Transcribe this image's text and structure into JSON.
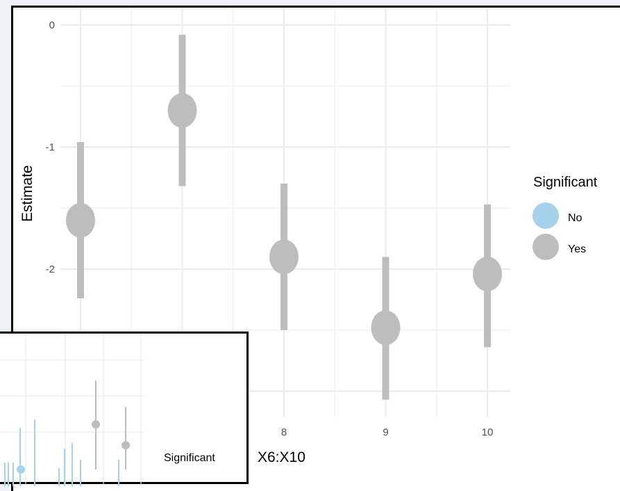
{
  "chart_data": [
    {
      "type": "scatter",
      "title": "",
      "xlabel": "X6:X10",
      "ylabel": "Estimate",
      "ylim": [
        -3.05,
        0.05
      ],
      "y_ticks": [
        "0",
        "-1",
        "-2"
      ],
      "y_tick_values": [
        0,
        -1,
        -2
      ],
      "x_tick_labels": [
        "8",
        "9",
        "10"
      ],
      "x_tick_values": [
        8,
        9,
        10
      ],
      "grid": true,
      "legend": {
        "title": "Significant",
        "position": "right",
        "entries": [
          {
            "label": "No",
            "color": "#a6d1ea"
          },
          {
            "label": "Yes",
            "color": "#bdbdbd"
          }
        ]
      },
      "points": [
        {
          "x": 6,
          "estimate": -1.6,
          "lower": -2.24,
          "upper": -0.96,
          "significant": "Yes"
        },
        {
          "x": 7,
          "estimate": -0.7,
          "lower": -1.32,
          "upper": -0.08,
          "significant": "Yes"
        },
        {
          "x": 8,
          "estimate": -1.9,
          "lower": -2.5,
          "upper": -1.3,
          "significant": "Yes"
        },
        {
          "x": 9,
          "estimate": -2.48,
          "lower": -3.07,
          "upper": -1.9,
          "significant": "Yes"
        },
        {
          "x": 10,
          "estimate": -2.04,
          "lower": -2.64,
          "upper": -1.47,
          "significant": "Yes"
        }
      ]
    },
    {
      "type": "scatter",
      "title": "",
      "legend": {
        "title": "Significant",
        "position": "right"
      },
      "points": [
        {
          "estimate": 0.55,
          "lower": 0.0,
          "upper": 0.95,
          "significant": "No"
        },
        {
          "estimate": 0.82,
          "lower": 0.5,
          "upper": 1.25,
          "significant": "Yes"
        },
        {
          "estimate": 0.6,
          "lower": 0.2,
          "upper": 1.1,
          "significant": "Yes"
        }
      ]
    }
  ],
  "colors": {
    "yes": "#bdbdbd",
    "no": "#a6d1ea",
    "grid": "#ebebeb"
  }
}
